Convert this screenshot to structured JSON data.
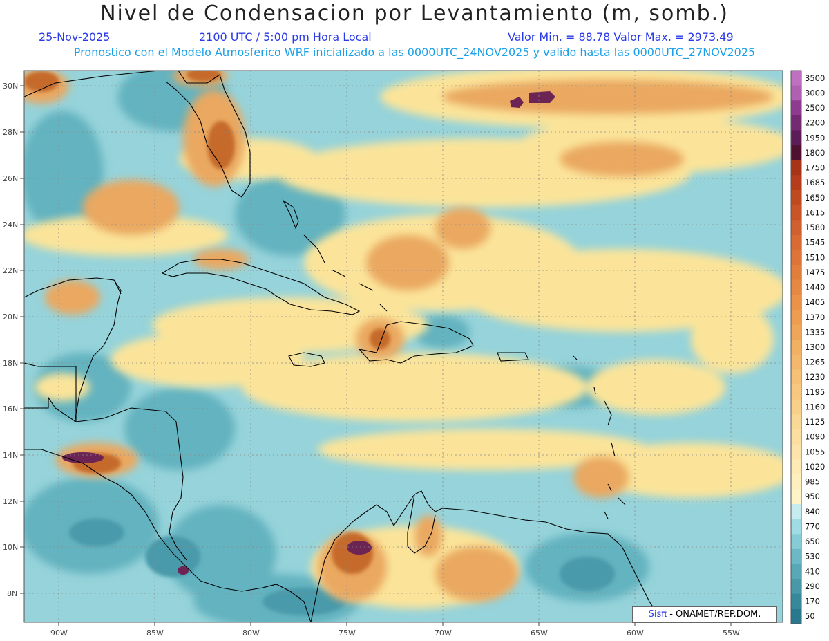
{
  "title": "Nivel de Condensacion por Levantamiento (m, somb.)",
  "header": {
    "date": "25-Nov-2025",
    "time": "2100 UTC / 5:00 pm Hora Local",
    "minmax": "Valor Min. = 88.78  Valor Max. = 2973.49",
    "description": "Pronostico con el Modelo Atmosferico WRF inicializado a las 0000UTC_24NOV2025 y valido hasta las  0000UTC_27NOV2025"
  },
  "map": {
    "lat_labels": [
      "30N",
      "28N",
      "26N",
      "24N",
      "22N",
      "20N",
      "18N",
      "16N",
      "14N",
      "12N",
      "10N",
      "8N"
    ],
    "lon_labels": [
      "90W",
      "85W",
      "80W",
      "75W",
      "70W",
      "65W",
      "60W",
      "55W"
    ],
    "colors": {
      "ocean_base": "#8fd0d8",
      "low": "#5bb0bd",
      "mid": "#fbe49a",
      "high": "#e59a4a",
      "very_high": "#b45a2c",
      "extreme": "#6c2455"
    }
  },
  "colorbar": {
    "levels": [
      "3500",
      "3000",
      "2500",
      "2200",
      "1950",
      "1800",
      "1750",
      "1685",
      "1650",
      "1615",
      "1580",
      "1545",
      "1510",
      "1475",
      "1440",
      "1405",
      "1370",
      "1335",
      "1300",
      "1265",
      "1230",
      "1195",
      "1160",
      "1125",
      "1090",
      "1055",
      "1020",
      "985",
      "950",
      "840",
      "770",
      "650",
      "530",
      "410",
      "290",
      "170",
      "50"
    ],
    "colors": [
      "#c070c0",
      "#b060b0",
      "#8e3a8e",
      "#742a72",
      "#5c1c5a",
      "#4e1230",
      "#a83418",
      "#b53d1c",
      "#c04a20",
      "#c85428",
      "#d06030",
      "#d86a34",
      "#de7438",
      "#e27e3c",
      "#e68842",
      "#ea9248",
      "#ee9c50",
      "#f0a658",
      "#f2b062",
      "#f4b86c",
      "#f6c076",
      "#f8c880",
      "#f8d08a",
      "#fad896",
      "#fbdea0",
      "#fce4aa",
      "#fdeab4",
      "#feefbe",
      "#fff4c8",
      "#c6ecef",
      "#a0dce4",
      "#86ccd6",
      "#6cb8c6",
      "#58a8b8",
      "#4898aa",
      "#38889c",
      "#2a788e"
    ]
  },
  "credit": {
    "sis": "Sisπ",
    "text": "- ONAMET/REP.DOM."
  }
}
